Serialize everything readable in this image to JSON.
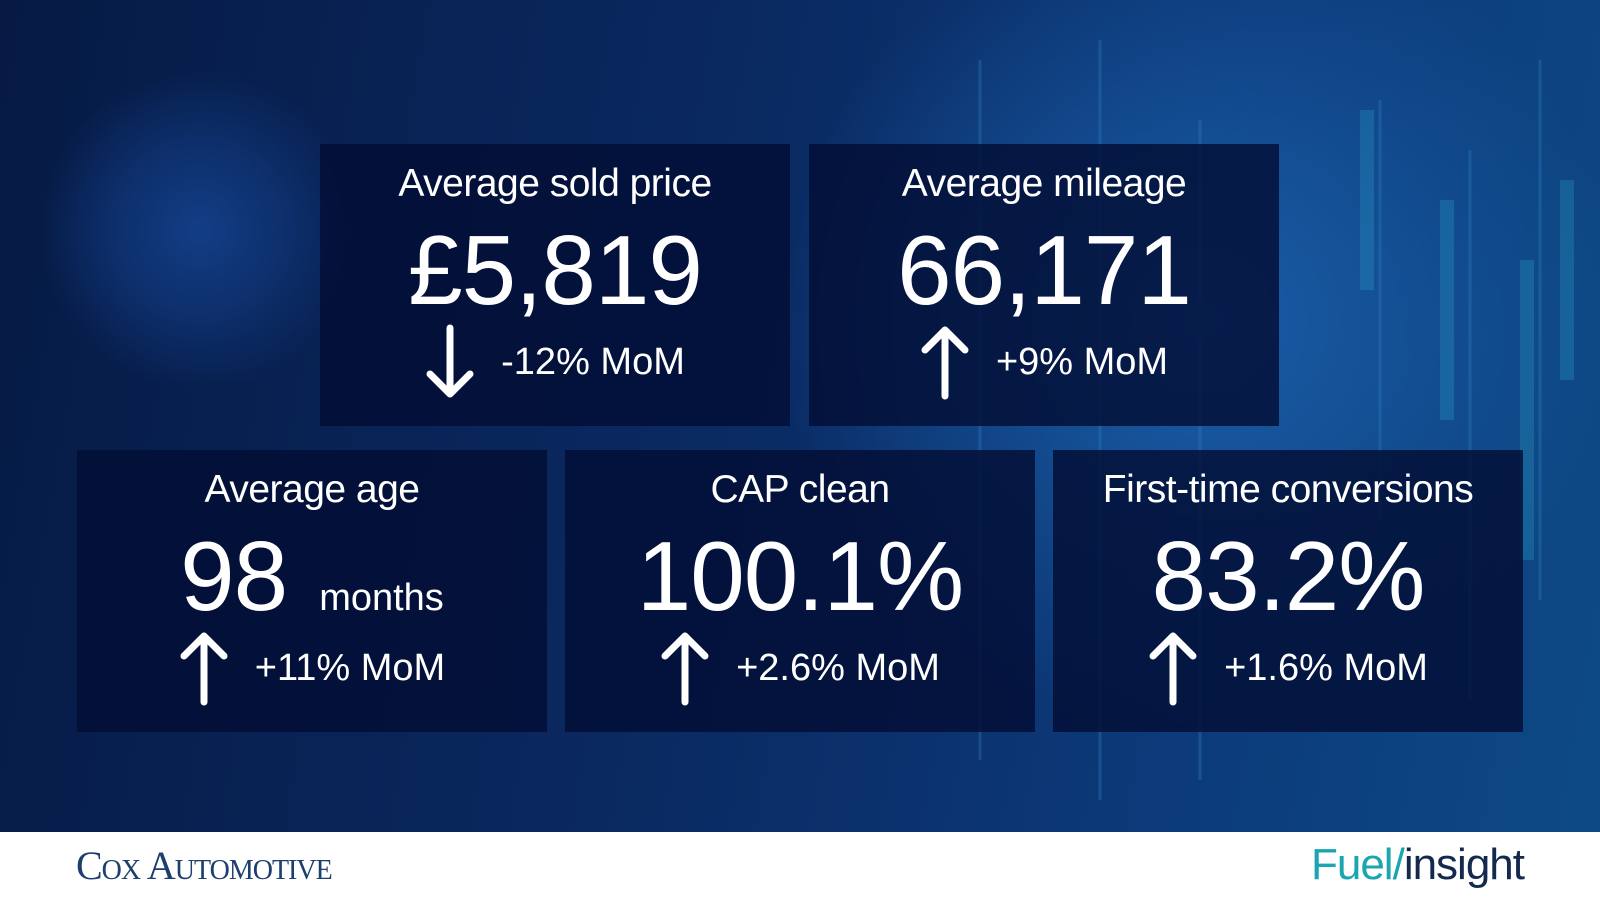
{
  "cards": [
    {
      "title": "Average sold price",
      "value": "£5,819",
      "change": "-12% MoM"
    },
    {
      "title": "Average mileage",
      "value": "66,171",
      "change": "+9% MoM"
    },
    {
      "title": "Average age",
      "value": "98",
      "unit": "months",
      "change": "+11% MoM"
    },
    {
      "title": "CAP clean",
      "value": "100.1%",
      "change": "+2.6% MoM"
    },
    {
      "title": "First-time conversions",
      "value": "83.2%",
      "change": "+1.6% MoM"
    }
  ],
  "footer": {
    "company": "Cox Automotive",
    "brand_part1": "Fuel/",
    "brand_part2": "insight"
  }
}
